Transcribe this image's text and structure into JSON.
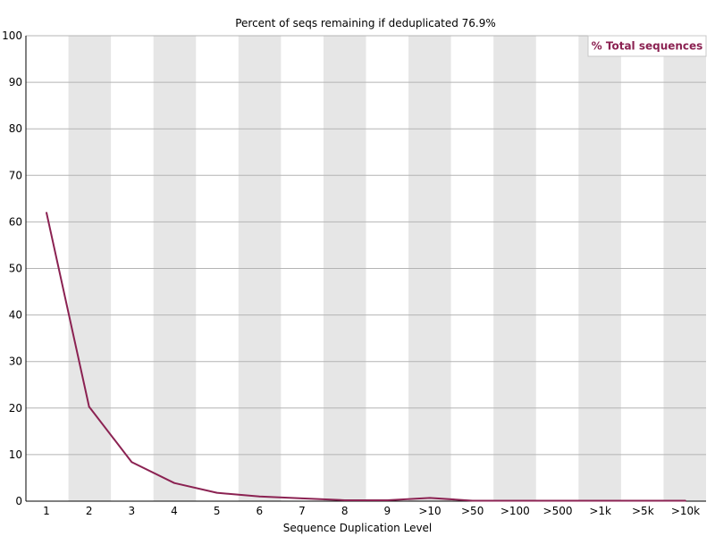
{
  "chart_data": {
    "type": "line",
    "title": "Percent of seqs remaining if deduplicated 76.9%",
    "xlabel": "Sequence Duplication Level",
    "ylabel": "",
    "categories": [
      "1",
      "2",
      "3",
      "4",
      "5",
      "6",
      "7",
      "8",
      "9",
      ">10",
      ">50",
      ">100",
      ">500",
      ">1k",
      ">5k",
      ">10k"
    ],
    "ylim": [
      0,
      100
    ],
    "yticks": [
      0,
      10,
      20,
      30,
      40,
      50,
      60,
      70,
      80,
      90,
      100
    ],
    "grid": true,
    "legend_position": "top-right",
    "series": [
      {
        "name": "% Total sequences",
        "color": "#8b2252",
        "values": [
          62.0,
          20.3,
          8.4,
          3.9,
          1.8,
          1.0,
          0.6,
          0.2,
          0.2,
          0.7,
          0.1,
          0.1,
          0.1,
          0.1,
          0.1,
          0.1
        ]
      }
    ],
    "band_color": "#e6e6e6",
    "grid_color": "#b4b4b4"
  }
}
